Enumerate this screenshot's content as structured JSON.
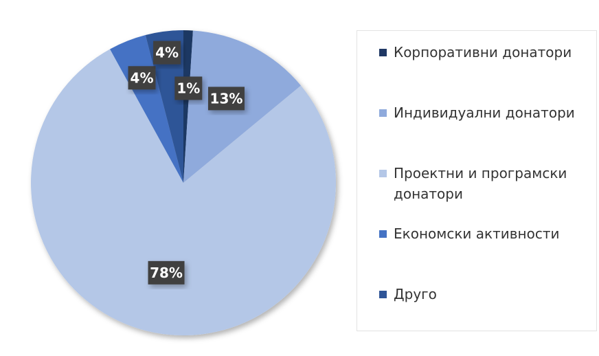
{
  "chart_data": {
    "type": "pie",
    "title": "",
    "start_angle_deg": 0,
    "direction": "clockwise",
    "slices": [
      {
        "label": "Корпоративни донатори",
        "value": 1,
        "display": "1%",
        "color": "#1f3864"
      },
      {
        "label": "Индивидуални донатори",
        "value": 13,
        "display": "13%",
        "color": "#8faadc"
      },
      {
        "label": "Проектни и програмски донатори",
        "value": 78,
        "display": "78%",
        "color": "#b4c7e7"
      },
      {
        "label": "Економски активности",
        "value": 4,
        "display": "4%",
        "color": "#4472c4"
      },
      {
        "label": "Друго",
        "value": 4,
        "display": "4%",
        "color": "#2f5597"
      }
    ],
    "legend_placement": "right",
    "data_label_background": "#404040",
    "data_label_color": "#ffffff"
  }
}
